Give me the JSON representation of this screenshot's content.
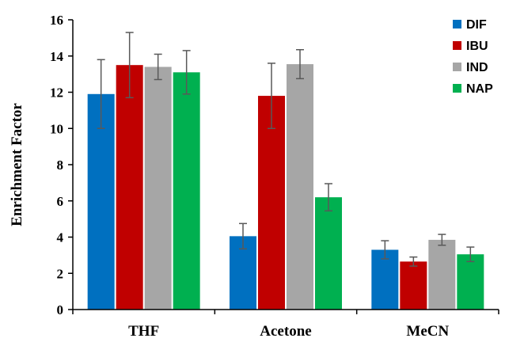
{
  "chart_data": {
    "type": "bar",
    "title": "",
    "xlabel": "",
    "ylabel": "Enrichment Factor",
    "ylim": [
      0,
      16
    ],
    "yticks": [
      "0",
      "2",
      "4",
      "6",
      "8",
      "10",
      "12",
      "14",
      "16"
    ],
    "categories": [
      "THF",
      "Acetone",
      "MeCN"
    ],
    "series": [
      {
        "name": "DIF",
        "color": "#0070C0",
        "values": [
          11.9,
          4.05,
          3.3
        ],
        "errors": [
          1.9,
          0.7,
          0.5
        ]
      },
      {
        "name": "IBU",
        "color": "#C00000",
        "values": [
          13.5,
          11.8,
          2.65
        ],
        "errors": [
          1.8,
          1.8,
          0.25
        ]
      },
      {
        "name": "IND",
        "color": "#A6A6A6",
        "values": [
          13.4,
          13.55,
          3.85
        ],
        "errors": [
          0.7,
          0.8,
          0.3
        ]
      },
      {
        "name": "NAP",
        "color": "#00B050",
        "values": [
          13.1,
          6.2,
          3.05
        ],
        "errors": [
          1.2,
          0.75,
          0.4
        ]
      }
    ],
    "grid": false,
    "legend": "top-right"
  }
}
